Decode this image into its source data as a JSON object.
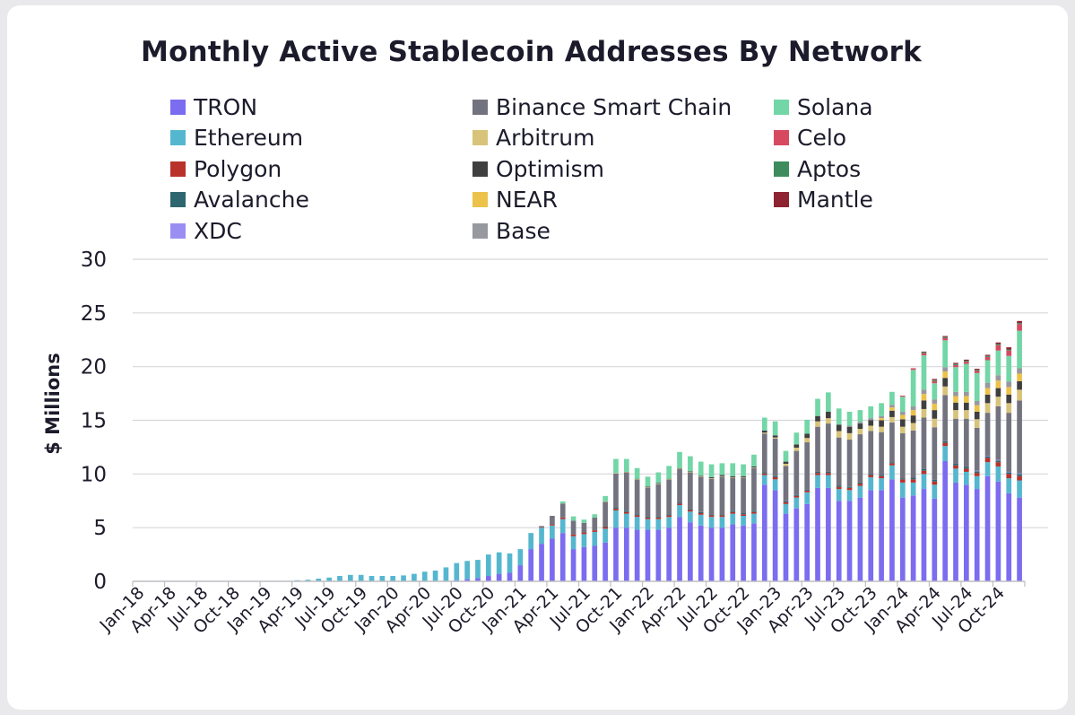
{
  "chart_data": {
    "type": "bar",
    "stacked": true,
    "title": "Monthly Active Stablecoin Addresses By Network",
    "ylabel": "$ Millions",
    "xlabel": "",
    "ylim": [
      0,
      30
    ],
    "yticks": [
      0,
      5,
      10,
      15,
      20,
      25,
      30
    ],
    "grid": true,
    "legend_position": "top",
    "x_tick_labels": [
      "Jan-18",
      "Apr-18",
      "Jul-18",
      "Oct-18",
      "Jan-19",
      "Apr-19",
      "Jul-19",
      "Oct-19",
      "Jan-20",
      "Apr-20",
      "Jul-20",
      "Oct-20",
      "Jan-21",
      "Apr-21",
      "Jul-21",
      "Oct-21",
      "Jan-22",
      "Apr-22",
      "Jul-22",
      "Oct-22",
      "Jan-23",
      "Apr-23",
      "Jul-23",
      "Oct-23",
      "Jan-24",
      "Apr-24",
      "Jul-24",
      "Oct-24"
    ],
    "categories": [
      "Jan-18",
      "Feb-18",
      "Mar-18",
      "Apr-18",
      "May-18",
      "Jun-18",
      "Jul-18",
      "Aug-18",
      "Sep-18",
      "Oct-18",
      "Nov-18",
      "Dec-18",
      "Jan-19",
      "Feb-19",
      "Mar-19",
      "Apr-19",
      "May-19",
      "Jun-19",
      "Jul-19",
      "Aug-19",
      "Sep-19",
      "Oct-19",
      "Nov-19",
      "Dec-19",
      "Jan-20",
      "Feb-20",
      "Mar-20",
      "Apr-20",
      "May-20",
      "Jun-20",
      "Jul-20",
      "Aug-20",
      "Sep-20",
      "Oct-20",
      "Nov-20",
      "Dec-20",
      "Jan-21",
      "Feb-21",
      "Mar-21",
      "Apr-21",
      "May-21",
      "Jun-21",
      "Jul-21",
      "Aug-21",
      "Sep-21",
      "Oct-21",
      "Nov-21",
      "Dec-21",
      "Jan-22",
      "Feb-22",
      "Mar-22",
      "Apr-22",
      "May-22",
      "Jun-22",
      "Jul-22",
      "Aug-22",
      "Sep-22",
      "Oct-22",
      "Nov-22",
      "Dec-22",
      "Jan-23",
      "Feb-23",
      "Mar-23",
      "Apr-23",
      "May-23",
      "Jun-23",
      "Jul-23",
      "Aug-23",
      "Sep-23",
      "Oct-23",
      "Nov-23",
      "Dec-23",
      "Jan-24",
      "Feb-24",
      "Mar-24",
      "Apr-24",
      "May-24",
      "Jun-24",
      "Jul-24",
      "Aug-24",
      "Sep-24",
      "Oct-24",
      "Nov-24",
      "Dec-24"
    ],
    "series": [
      {
        "name": "TRON",
        "color": "#7b6cf0",
        "values": [
          0,
          0,
          0,
          0,
          0,
          0,
          0,
          0,
          0,
          0,
          0,
          0,
          0,
          0,
          0,
          0,
          0,
          0,
          0,
          0,
          0,
          0,
          0,
          0,
          0,
          0,
          0,
          0,
          0,
          0,
          0.1,
          0.2,
          0.3,
          0.5,
          0.7,
          0.8,
          1.5,
          3.0,
          3.5,
          4.0,
          4.5,
          3.0,
          3.2,
          3.3,
          3.6,
          5.0,
          5.0,
          4.8,
          4.8,
          4.8,
          5.0,
          6.0,
          5.5,
          5.2,
          5.0,
          5.0,
          5.3,
          5.2,
          5.4,
          9.0,
          8.5,
          6.3,
          6.8,
          7.2,
          8.7,
          8.7,
          7.5,
          7.5,
          7.8,
          8.5,
          8.5,
          9.5,
          7.8,
          8.0,
          8.6,
          7.7,
          11.2,
          9.2,
          9.0,
          8.6,
          9.8,
          9.3,
          8.2,
          7.8
        ]
      },
      {
        "name": "Ethereum",
        "color": "#55b7cf",
        "values": [
          0,
          0,
          0,
          0,
          0,
          0,
          0,
          0,
          0,
          0,
          0,
          0,
          0,
          0,
          0,
          0.1,
          0.15,
          0.25,
          0.35,
          0.5,
          0.6,
          0.6,
          0.5,
          0.5,
          0.5,
          0.55,
          0.7,
          0.9,
          1.0,
          1.3,
          1.6,
          1.7,
          1.7,
          2.0,
          2.0,
          1.8,
          1.5,
          1.5,
          1.5,
          1.2,
          1.3,
          1.2,
          1.2,
          1.3,
          1.3,
          1.6,
          1.3,
          1.2,
          1.0,
          1.0,
          1.0,
          1.1,
          1.0,
          1.0,
          1.0,
          1.0,
          1.0,
          0.9,
          0.9,
          0.9,
          1.0,
          0.9,
          1.0,
          1.1,
          1.2,
          1.2,
          1.1,
          1.0,
          1.1,
          1.2,
          1.1,
          1.3,
          1.4,
          1.2,
          1.4,
          1.3,
          1.4,
          1.3,
          1.2,
          1.2,
          1.3,
          1.4,
          1.4,
          1.6
        ]
      },
      {
        "name": "Polygon",
        "color": "#b8312b",
        "values": [
          0,
          0,
          0,
          0,
          0,
          0,
          0,
          0,
          0,
          0,
          0,
          0,
          0,
          0,
          0,
          0,
          0,
          0,
          0,
          0,
          0,
          0,
          0,
          0,
          0,
          0,
          0,
          0,
          0,
          0,
          0,
          0,
          0,
          0,
          0,
          0,
          0,
          0,
          0.05,
          0.1,
          0.15,
          0.15,
          0.15,
          0.15,
          0.15,
          0.15,
          0.15,
          0.15,
          0.15,
          0.15,
          0.15,
          0.15,
          0.15,
          0.15,
          0.15,
          0.15,
          0.15,
          0.15,
          0.15,
          0.15,
          0.2,
          0.15,
          0.15,
          0.15,
          0.2,
          0.2,
          0.2,
          0.2,
          0.2,
          0.2,
          0.2,
          0.2,
          0.3,
          0.3,
          0.3,
          0.3,
          0.3,
          0.3,
          0.3,
          0.3,
          0.4,
          0.4,
          0.4,
          0.4
        ]
      },
      {
        "name": "Avalanche",
        "color": "#2e6670",
        "values": [
          0,
          0,
          0,
          0,
          0,
          0,
          0,
          0,
          0,
          0,
          0,
          0,
          0,
          0,
          0,
          0,
          0,
          0,
          0,
          0,
          0,
          0,
          0,
          0,
          0,
          0,
          0,
          0,
          0,
          0,
          0,
          0,
          0,
          0,
          0,
          0,
          0,
          0,
          0,
          0,
          0,
          0,
          0,
          0,
          0.05,
          0.1,
          0.1,
          0.1,
          0.1,
          0.1,
          0.1,
          0.1,
          0.1,
          0.1,
          0.1,
          0.1,
          0.1,
          0.1,
          0.1,
          0.1,
          0.1,
          0.1,
          0.1,
          0.1,
          0.1,
          0.1,
          0.1,
          0.1,
          0.1,
          0.1,
          0.1,
          0.1,
          0.1,
          0.15,
          0.15,
          0.15,
          0.15,
          0.15,
          0.15,
          0.15,
          0.15,
          0.15,
          0.15,
          0.2
        ]
      },
      {
        "name": "XDC",
        "color": "#9b8ef3",
        "values": [
          0,
          0,
          0,
          0,
          0,
          0,
          0,
          0,
          0,
          0,
          0,
          0,
          0,
          0,
          0,
          0,
          0,
          0,
          0,
          0,
          0,
          0,
          0,
          0,
          0,
          0,
          0,
          0,
          0,
          0,
          0,
          0,
          0,
          0,
          0,
          0,
          0,
          0,
          0,
          0,
          0,
          0,
          0,
          0,
          0,
          0,
          0,
          0,
          0,
          0,
          0,
          0,
          0,
          0,
          0,
          0,
          0,
          0,
          0,
          0,
          0,
          0,
          0,
          0,
          0,
          0,
          0,
          0,
          0,
          0,
          0,
          0,
          0,
          0,
          0,
          0,
          0,
          0,
          0,
          0.05,
          0.05,
          0.05,
          0.05,
          0.05
        ]
      },
      {
        "name": "Binance Smart Chain",
        "color": "#737380",
        "values": [
          0,
          0,
          0,
          0,
          0,
          0,
          0,
          0,
          0,
          0,
          0,
          0,
          0,
          0,
          0,
          0,
          0,
          0,
          0,
          0,
          0,
          0,
          0,
          0,
          0,
          0,
          0,
          0,
          0,
          0,
          0,
          0,
          0,
          0,
          0,
          0,
          0,
          0,
          0.1,
          0.8,
          1.3,
          1.3,
          0.9,
          1.2,
          2.3,
          3.2,
          3.6,
          3.2,
          2.7,
          3.0,
          3.2,
          3.1,
          3.4,
          3.3,
          3.3,
          3.5,
          3.1,
          3.3,
          4.0,
          3.6,
          3.5,
          3.3,
          4.1,
          4.4,
          4.2,
          4.5,
          4.5,
          4.4,
          4.5,
          4.0,
          4.0,
          3.7,
          4.2,
          4.4,
          4.8,
          4.9,
          4.3,
          4.2,
          4.5,
          4.0,
          4.0,
          5.0,
          5.5,
          6.8
        ]
      },
      {
        "name": "Arbitrum",
        "color": "#d8c37a",
        "values": [
          0,
          0,
          0,
          0,
          0,
          0,
          0,
          0,
          0,
          0,
          0,
          0,
          0,
          0,
          0,
          0,
          0,
          0,
          0,
          0,
          0,
          0,
          0,
          0,
          0,
          0,
          0,
          0,
          0,
          0,
          0,
          0,
          0,
          0,
          0,
          0,
          0,
          0,
          0,
          0,
          0,
          0,
          0,
          0,
          0.05,
          0.05,
          0.05,
          0.05,
          0.05,
          0.05,
          0.05,
          0.05,
          0.05,
          0.05,
          0.05,
          0.05,
          0.05,
          0.05,
          0.05,
          0.1,
          0.1,
          0.2,
          0.3,
          0.4,
          0.5,
          0.5,
          0.6,
          0.6,
          0.5,
          0.5,
          0.5,
          0.5,
          0.6,
          0.7,
          0.8,
          0.8,
          0.8,
          0.8,
          0.8,
          0.8,
          0.9,
          0.9,
          0.9,
          1.0
        ]
      },
      {
        "name": "Optimism",
        "color": "#3f3f3f",
        "values": [
          0,
          0,
          0,
          0,
          0,
          0,
          0,
          0,
          0,
          0,
          0,
          0,
          0,
          0,
          0,
          0,
          0,
          0,
          0,
          0,
          0,
          0,
          0,
          0,
          0,
          0,
          0,
          0,
          0,
          0,
          0,
          0,
          0,
          0,
          0,
          0,
          0,
          0,
          0,
          0,
          0,
          0,
          0,
          0,
          0,
          0,
          0,
          0.05,
          0.05,
          0.05,
          0.05,
          0.05,
          0.05,
          0.05,
          0.1,
          0.1,
          0.1,
          0.1,
          0.1,
          0.2,
          0.2,
          0.2,
          0.3,
          0.4,
          0.5,
          0.6,
          0.6,
          0.6,
          0.5,
          0.5,
          0.6,
          0.6,
          0.7,
          0.7,
          0.8,
          0.8,
          0.8,
          0.7,
          0.7,
          0.7,
          0.8,
          0.8,
          0.8,
          0.8
        ]
      },
      {
        "name": "NEAR",
        "color": "#ecc24a",
        "values": [
          0,
          0,
          0,
          0,
          0,
          0,
          0,
          0,
          0,
          0,
          0,
          0,
          0,
          0,
          0,
          0,
          0,
          0,
          0,
          0,
          0,
          0,
          0,
          0,
          0,
          0,
          0,
          0,
          0,
          0,
          0,
          0,
          0,
          0,
          0,
          0,
          0,
          0,
          0,
          0,
          0,
          0,
          0,
          0,
          0,
          0,
          0,
          0,
          0,
          0,
          0,
          0,
          0,
          0,
          0,
          0,
          0,
          0,
          0,
          0,
          0,
          0,
          0,
          0,
          0,
          0,
          0,
          0,
          0,
          0,
          0.2,
          0.3,
          0.4,
          0.5,
          0.6,
          0.6,
          0.6,
          0.6,
          0.6,
          0.6,
          0.6,
          0.7,
          0.7,
          0.7
        ]
      },
      {
        "name": "Base",
        "color": "#98989f",
        "values": [
          0,
          0,
          0,
          0,
          0,
          0,
          0,
          0,
          0,
          0,
          0,
          0,
          0,
          0,
          0,
          0,
          0,
          0,
          0,
          0,
          0,
          0,
          0,
          0,
          0,
          0,
          0,
          0,
          0,
          0,
          0,
          0,
          0,
          0,
          0,
          0,
          0,
          0,
          0,
          0,
          0,
          0,
          0,
          0,
          0,
          0,
          0,
          0,
          0,
          0,
          0,
          0,
          0,
          0,
          0,
          0,
          0,
          0,
          0,
          0,
          0,
          0,
          0,
          0,
          0,
          0,
          0,
          0.1,
          0.15,
          0.2,
          0.2,
          0.25,
          0.3,
          0.35,
          0.4,
          0.4,
          0.4,
          0.4,
          0.4,
          0.4,
          0.5,
          0.5,
          0.5,
          0.5
        ]
      },
      {
        "name": "Solana",
        "color": "#72d6a6",
        "values": [
          0,
          0,
          0,
          0,
          0,
          0,
          0,
          0,
          0,
          0,
          0,
          0,
          0,
          0,
          0,
          0,
          0,
          0,
          0,
          0,
          0,
          0,
          0,
          0,
          0,
          0,
          0,
          0,
          0,
          0,
          0,
          0,
          0,
          0,
          0,
          0,
          0,
          0,
          0,
          0,
          0.2,
          0.4,
          0.3,
          0.3,
          0.5,
          1.3,
          1.2,
          1.0,
          0.9,
          1.0,
          1.2,
          1.5,
          1.4,
          1.3,
          1.2,
          1.1,
          1.2,
          1.1,
          1.1,
          1.2,
          1.3,
          1.0,
          1.1,
          1.3,
          1.6,
          1.8,
          1.5,
          1.3,
          1.1,
          1.1,
          1.2,
          1.2,
          1.4,
          3.4,
          3.2,
          1.5,
          2.5,
          2.3,
          2.6,
          2.6,
          2.1,
          2.3,
          2.4,
          3.5
        ]
      },
      {
        "name": "Celo",
        "color": "#d6495f",
        "values": [
          0,
          0,
          0,
          0,
          0,
          0,
          0,
          0,
          0,
          0,
          0,
          0,
          0,
          0,
          0,
          0,
          0,
          0,
          0,
          0,
          0,
          0,
          0,
          0,
          0,
          0,
          0,
          0,
          0,
          0,
          0,
          0,
          0,
          0,
          0,
          0,
          0,
          0,
          0,
          0,
          0,
          0,
          0,
          0,
          0,
          0,
          0,
          0,
          0,
          0,
          0,
          0,
          0,
          0,
          0,
          0,
          0,
          0,
          0,
          0,
          0,
          0,
          0,
          0,
          0,
          0,
          0,
          0,
          0,
          0,
          0,
          0,
          0.1,
          0.15,
          0.2,
          0.2,
          0.2,
          0.2,
          0.2,
          0.2,
          0.3,
          0.5,
          0.5,
          0.6
        ]
      },
      {
        "name": "Aptos",
        "color": "#3e8c5d",
        "values": [
          0,
          0,
          0,
          0,
          0,
          0,
          0,
          0,
          0,
          0,
          0,
          0,
          0,
          0,
          0,
          0,
          0,
          0,
          0,
          0,
          0,
          0,
          0,
          0,
          0,
          0,
          0,
          0,
          0,
          0,
          0,
          0,
          0,
          0,
          0,
          0,
          0,
          0,
          0,
          0,
          0,
          0,
          0,
          0,
          0,
          0,
          0,
          0,
          0,
          0,
          0,
          0,
          0,
          0,
          0,
          0,
          0,
          0,
          0,
          0,
          0,
          0,
          0,
          0,
          0,
          0,
          0,
          0,
          0,
          0,
          0,
          0,
          0,
          0,
          0.1,
          0.1,
          0.1,
          0.1,
          0.1,
          0.1,
          0.1,
          0.1,
          0.1,
          0.1
        ]
      },
      {
        "name": "Mantle",
        "color": "#8e2331",
        "values": [
          0,
          0,
          0,
          0,
          0,
          0,
          0,
          0,
          0,
          0,
          0,
          0,
          0,
          0,
          0,
          0,
          0,
          0,
          0,
          0,
          0,
          0,
          0,
          0,
          0,
          0,
          0,
          0,
          0,
          0,
          0,
          0,
          0,
          0,
          0,
          0,
          0,
          0,
          0,
          0,
          0,
          0,
          0,
          0,
          0,
          0,
          0,
          0,
          0,
          0,
          0,
          0,
          0,
          0,
          0,
          0,
          0,
          0,
          0,
          0,
          0,
          0,
          0,
          0,
          0,
          0,
          0,
          0,
          0,
          0,
          0,
          0,
          0,
          0,
          0.05,
          0.1,
          0.1,
          0.1,
          0.1,
          0.1,
          0.1,
          0.15,
          0.2,
          0.2
        ]
      }
    ]
  }
}
